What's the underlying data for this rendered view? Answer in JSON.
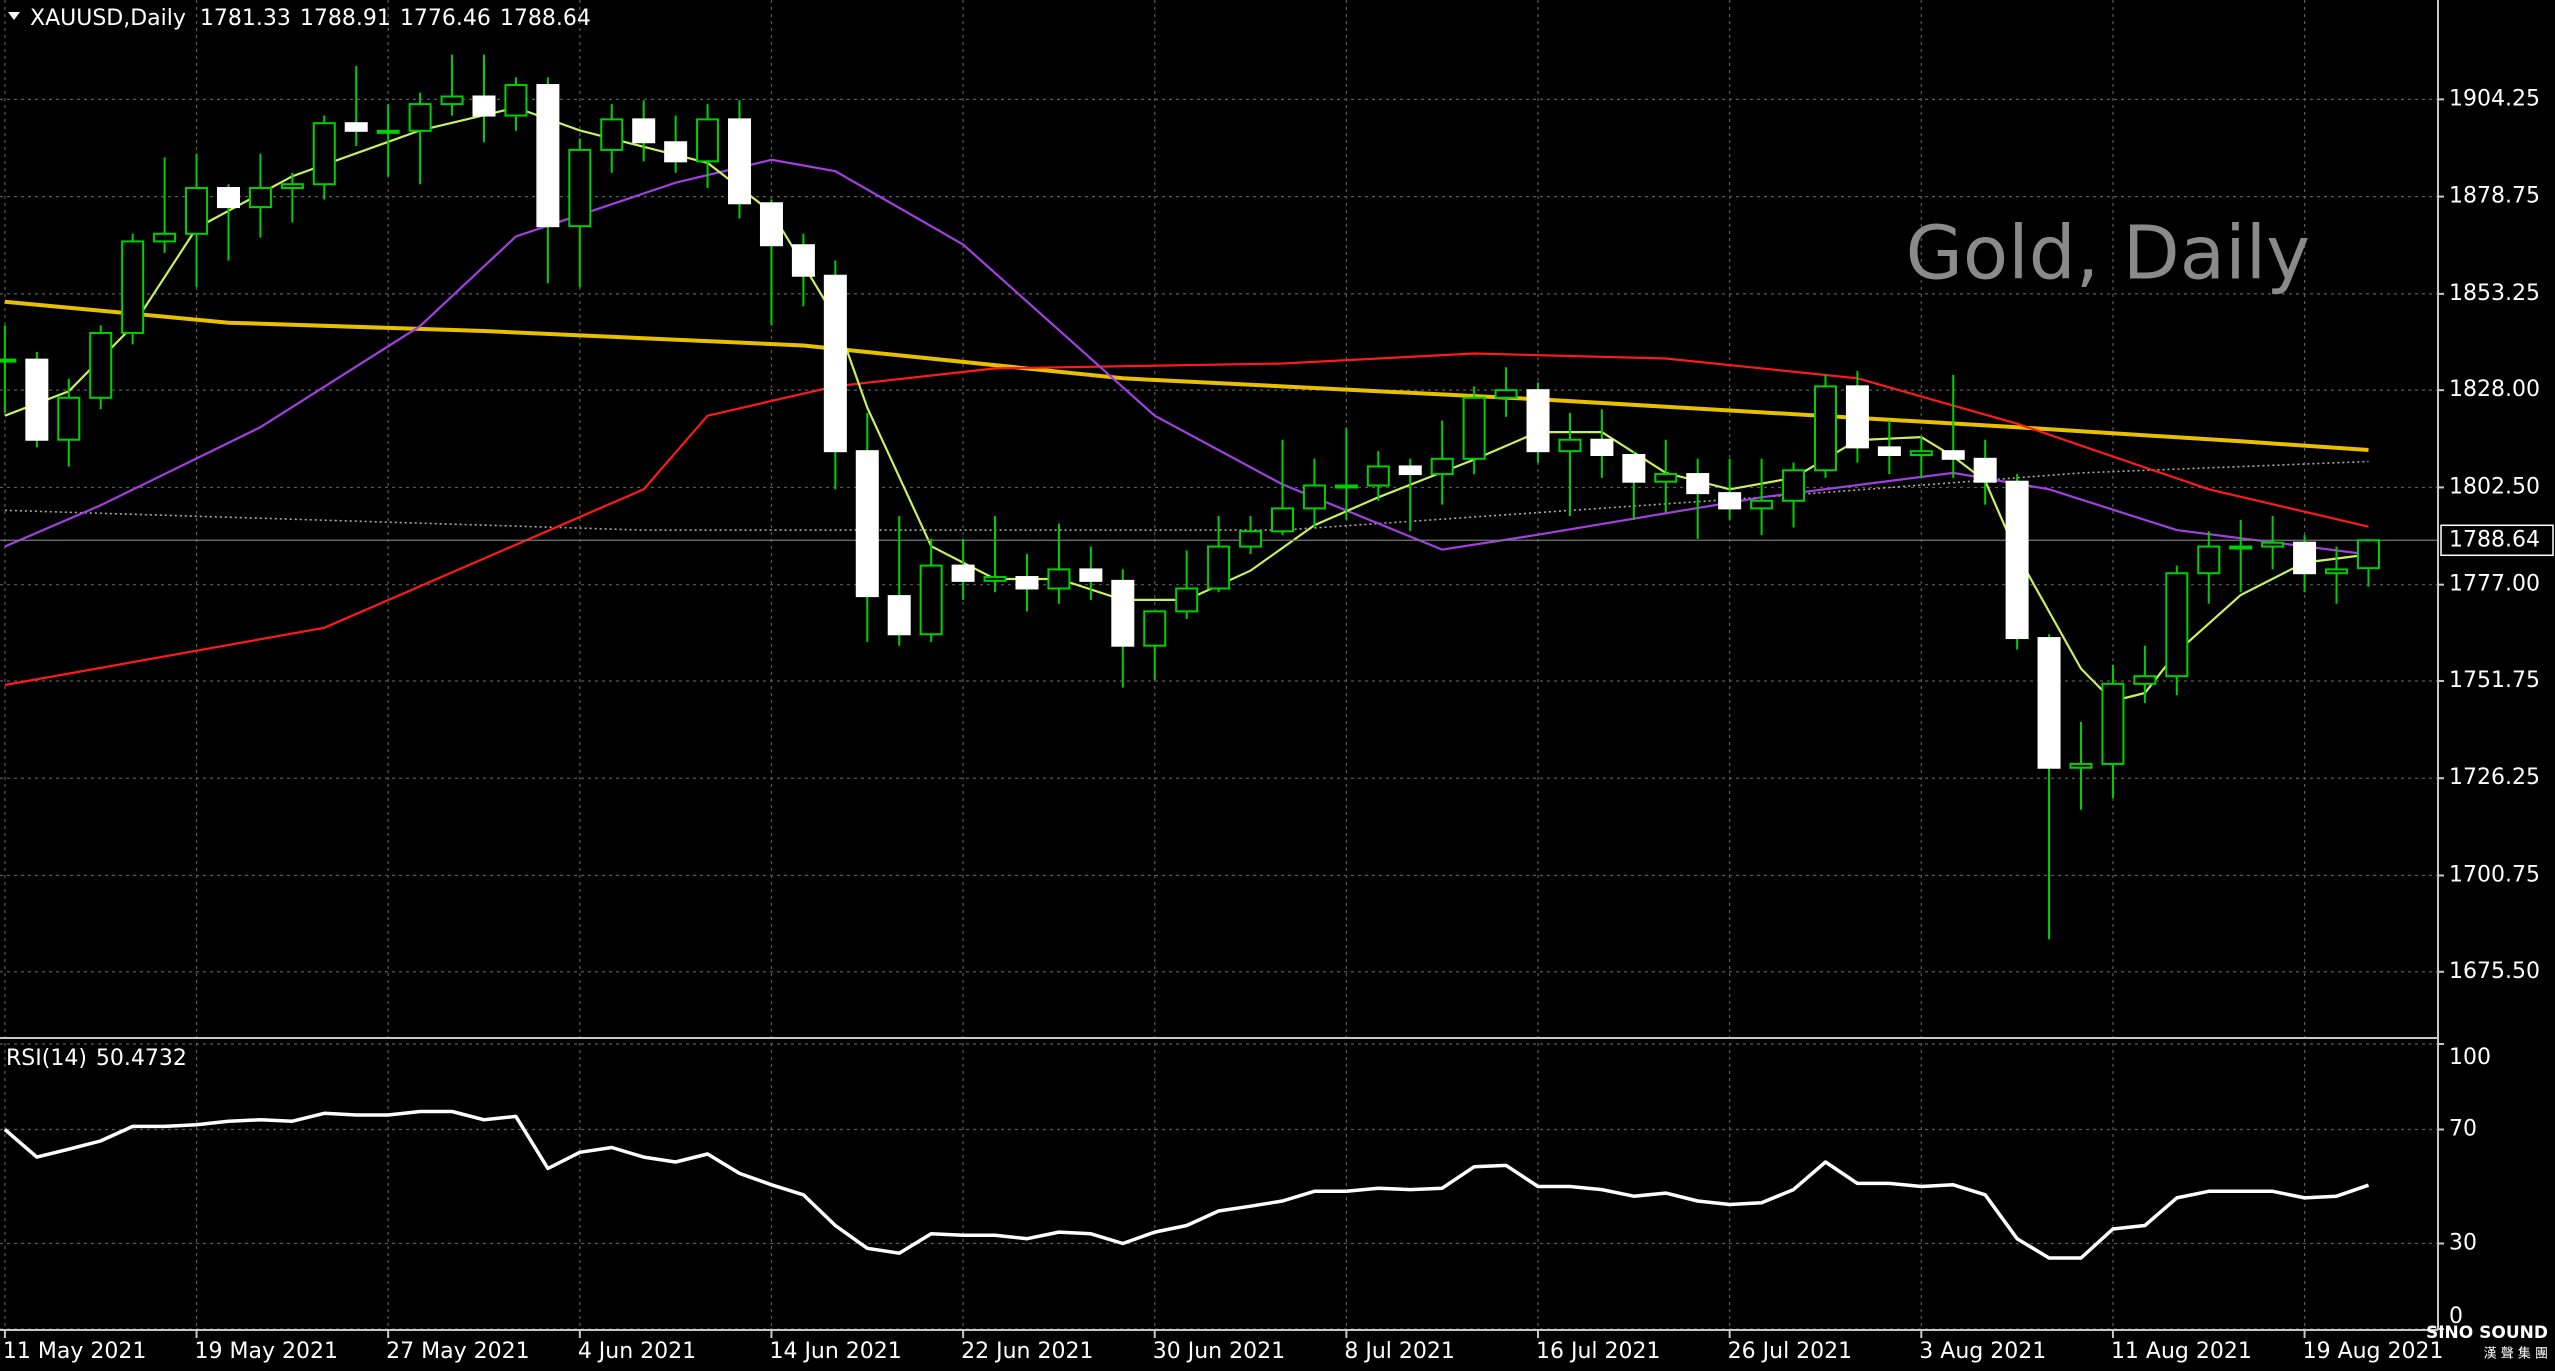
{
  "chart_data": [
    {
      "type": "candlestick",
      "title": "XAUUSD,Daily",
      "watermark": "Gold, Daily",
      "categories": [
        "11 May 2021",
        null,
        null,
        null,
        null,
        null,
        "19 May 2021",
        null,
        null,
        null,
        null,
        null,
        "27 May 2021",
        null,
        null,
        null,
        null,
        null,
        "4 Jun 2021",
        null,
        null,
        null,
        null,
        null,
        "14 Jun 2021",
        null,
        null,
        null,
        null,
        null,
        "22 Jun 2021",
        null,
        null,
        null,
        null,
        null,
        "30 Jun 2021",
        null,
        null,
        null,
        null,
        null,
        "8 Jul 2021",
        null,
        null,
        null,
        null,
        null,
        "16 Jul 2021",
        null,
        null,
        null,
        null,
        null,
        "26 Jul 2021",
        null,
        null,
        null,
        null,
        null,
        "3 Aug 2021",
        null,
        null,
        null,
        null,
        null,
        "11 Aug 2021",
        null,
        null,
        null,
        null,
        null,
        "19 Aug 2021",
        null,
        null
      ],
      "open": [
        1836,
        1836,
        1815,
        1826,
        1843,
        1867,
        1869,
        1881,
        1876,
        1881,
        1882,
        1898,
        1896,
        1896,
        1903,
        1905,
        1900,
        1908,
        1871,
        1891,
        1899,
        1893,
        1888,
        1899,
        1877,
        1866,
        1858,
        1812,
        1774,
        1764,
        1782,
        1778,
        1779,
        1776,
        1781,
        1778,
        1761,
        1770,
        1776,
        1787,
        1791,
        1797,
        1803,
        1803,
        1808,
        1806,
        1810,
        1826,
        1828,
        1812,
        1815,
        1811,
        1804,
        1806,
        1801,
        1797,
        1799,
        1807,
        1829,
        1813,
        1811,
        1812,
        1810,
        1804,
        1763,
        1729,
        1730,
        1751,
        1753,
        1780,
        1787,
        1787,
        1788,
        1780,
        1781.33
      ],
      "high": [
        1845,
        1838,
        1831,
        1845,
        1869,
        1889,
        1890,
        1882,
        1890,
        1885,
        1900,
        1913,
        1903,
        1906,
        1916,
        1916,
        1910,
        1910,
        1894,
        1903,
        1904,
        1900,
        1903,
        1904,
        1878,
        1869,
        1862,
        1822,
        1795,
        1789,
        1789,
        1795,
        1785,
        1793,
        1787,
        1781,
        1770,
        1786,
        1795,
        1795,
        1815,
        1810,
        1818,
        1812,
        1810,
        1820,
        1829,
        1834,
        1830,
        1822,
        1823,
        1812,
        1815,
        1810,
        1810,
        1810,
        1809,
        1832,
        1833,
        1820,
        1816,
        1832,
        1815,
        1806,
        1764,
        1741,
        1756,
        1761,
        1782,
        1791,
        1794,
        1795,
        1790,
        1787,
        1788.91
      ],
      "low": [
        1822,
        1813,
        1808,
        1823,
        1840,
        1864,
        1855,
        1862,
        1868,
        1872,
        1878,
        1892,
        1884,
        1882,
        1900,
        1893,
        1896,
        1856,
        1855,
        1885,
        1888,
        1885,
        1881,
        1873,
        1845,
        1850,
        1802,
        1762,
        1761,
        1762,
        1773,
        1775,
        1770,
        1772,
        1773,
        1750,
        1752,
        1768,
        1775,
        1785,
        1790,
        1792,
        1794,
        1799,
        1791,
        1798,
        1806,
        1821,
        1809,
        1795,
        1805,
        1794,
        1796,
        1789,
        1794,
        1790,
        1792,
        1805,
        1809,
        1806,
        1805,
        1805,
        1798,
        1760,
        1684,
        1718,
        1721,
        1746,
        1748,
        1772,
        1775,
        1781,
        1775,
        1772,
        1776.46
      ],
      "close": [
        1836,
        1815,
        1826,
        1843,
        1867,
        1869,
        1881,
        1876,
        1881,
        1882,
        1898,
        1896,
        1896,
        1903,
        1905,
        1900,
        1908,
        1871,
        1891,
        1899,
        1893,
        1888,
        1899,
        1877,
        1866,
        1858,
        1812,
        1774,
        1764,
        1782,
        1778,
        1779,
        1776,
        1781,
        1778,
        1761,
        1770,
        1776,
        1787,
        1791,
        1797,
        1803,
        1803,
        1808,
        1806,
        1810,
        1826,
        1828,
        1812,
        1815,
        1811,
        1804,
        1806,
        1801,
        1797,
        1799,
        1807,
        1829,
        1813,
        1811,
        1812,
        1810,
        1804,
        1763,
        1729,
        1730,
        1751,
        1753,
        1780,
        1787,
        1787,
        1788,
        1780,
        1781,
        1788.64
      ],
      "up_color": "#00d000",
      "down_body": "#ffffff",
      "up_body": "#000000",
      "overlays": [
        {
          "color": "#aaaaaa",
          "style": "dotted",
          "x": [
            0,
            20,
            40,
            55,
            65,
            74
          ],
          "values": [
            1796.5,
            1791.3,
            1791.3,
            1799.9,
            1806.3,
            1809.3
          ]
        },
        {
          "color": "#e8c000",
          "style": "solid",
          "x": [
            0,
            7,
            15,
            25,
            35,
            48,
            63,
            70,
            74
          ],
          "values": [
            1851.2,
            1845.7,
            1843.5,
            1839.7,
            1831.1,
            1825.6,
            1818.3,
            1814.6,
            1812.3
          ]
        },
        {
          "color": "#ff1a1a",
          "style": "solid",
          "x": [
            0,
            10,
            20,
            22,
            26,
            31,
            40,
            46,
            52,
            58,
            63,
            69,
            74
          ],
          "values": [
            1750.7,
            1765.7,
            1802,
            1821.3,
            1829,
            1833.7,
            1835,
            1837.6,
            1836.3,
            1831.1,
            1819.2,
            1802,
            1792.2
          ]
        },
        {
          "color": "#a040e0",
          "style": "solid",
          "x": [
            0,
            3,
            8,
            13,
            16,
            21,
            24,
            26,
            30,
            36,
            40,
            45,
            48,
            55,
            61,
            64,
            68,
            74
          ],
          "values": [
            1787,
            1797.8,
            1818.3,
            1844.8,
            1868.3,
            1882.4,
            1888.4,
            1885.4,
            1866.2,
            1821.3,
            1803.3,
            1786.2,
            1790.1,
            1799.9,
            1806.3,
            1802,
            1791.3,
            1784.9
          ]
        },
        {
          "color": "#c8f060",
          "style": "solid",
          "x": [
            0,
            2,
            4,
            6,
            9,
            13,
            16,
            18,
            20,
            22,
            24,
            26,
            27,
            29,
            31,
            33,
            35,
            37,
            39,
            41,
            43,
            46,
            48,
            50,
            52,
            54,
            56,
            58,
            60,
            61,
            62,
            63,
            65,
            66,
            67,
            68,
            70,
            72,
            74
          ],
          "values": [
            1821.3,
            1827.7,
            1844.8,
            1870.5,
            1884.1,
            1896.1,
            1902.1,
            1896.1,
            1891.8,
            1887.6,
            1874.7,
            1847,
            1823.4,
            1787.1,
            1778.5,
            1778.5,
            1773,
            1773,
            1780.7,
            1792.6,
            1799.9,
            1809.8,
            1817,
            1817,
            1806.3,
            1802,
            1805,
            1814.9,
            1815.7,
            1810.6,
            1804.2,
            1784.9,
            1755,
            1746.5,
            1748.6,
            1759.3,
            1774.3,
            1782.8,
            1784.9
          ]
        }
      ],
      "ylim": [
        1658.4,
        1930.3
      ],
      "yticks": [
        1904.25,
        1878.75,
        1853.25,
        {
          "value": 1828,
          "label": "1828.00"
        },
        {
          "value": 1802.5,
          "label": "1802.50"
        },
        {
          "value": 1777,
          "label": "1777.00"
        },
        1751.75,
        1726.25,
        1700.75,
        {
          "value": 1675.5,
          "label": "1675.50"
        }
      ],
      "grid": true
    },
    {
      "type": "line",
      "title": "RSI(14)",
      "color": "#ffffff",
      "values": [
        70,
        60.3,
        63.1,
        66,
        71.1,
        71.1,
        71.7,
        72.9,
        73.4,
        72.9,
        75.7,
        75.1,
        75.1,
        76.3,
        76.3,
        73.4,
        74.6,
        56.3,
        62,
        63.7,
        60.3,
        58.6,
        61.4,
        54.6,
        50.6,
        47.1,
        36.3,
        28.3,
        26.6,
        33.4,
        32.9,
        32.9,
        31.7,
        34,
        33.4,
        30,
        34,
        36.3,
        41.4,
        43.1,
        44.9,
        48.3,
        48.3,
        49.4,
        48.9,
        49.4,
        56.9,
        57.4,
        50,
        50,
        48.9,
        46.6,
        47.7,
        44.9,
        43.7,
        44.3,
        48.9,
        58.6,
        51.1,
        51.1,
        50,
        50.6,
        47.1,
        31.7,
        24.9,
        24.9,
        35.1,
        36.3,
        46,
        48.3,
        48.3,
        48.3,
        46,
        46.6,
        50.4732
      ],
      "ylim": [
        0,
        100
      ],
      "yticks": [
        100,
        70,
        30,
        0
      ],
      "grid": true
    },
    {
      "type": "logo",
      "title": "SINO SOUND",
      "subtitle": "漢 聲 集 團"
    }
  ]
}
